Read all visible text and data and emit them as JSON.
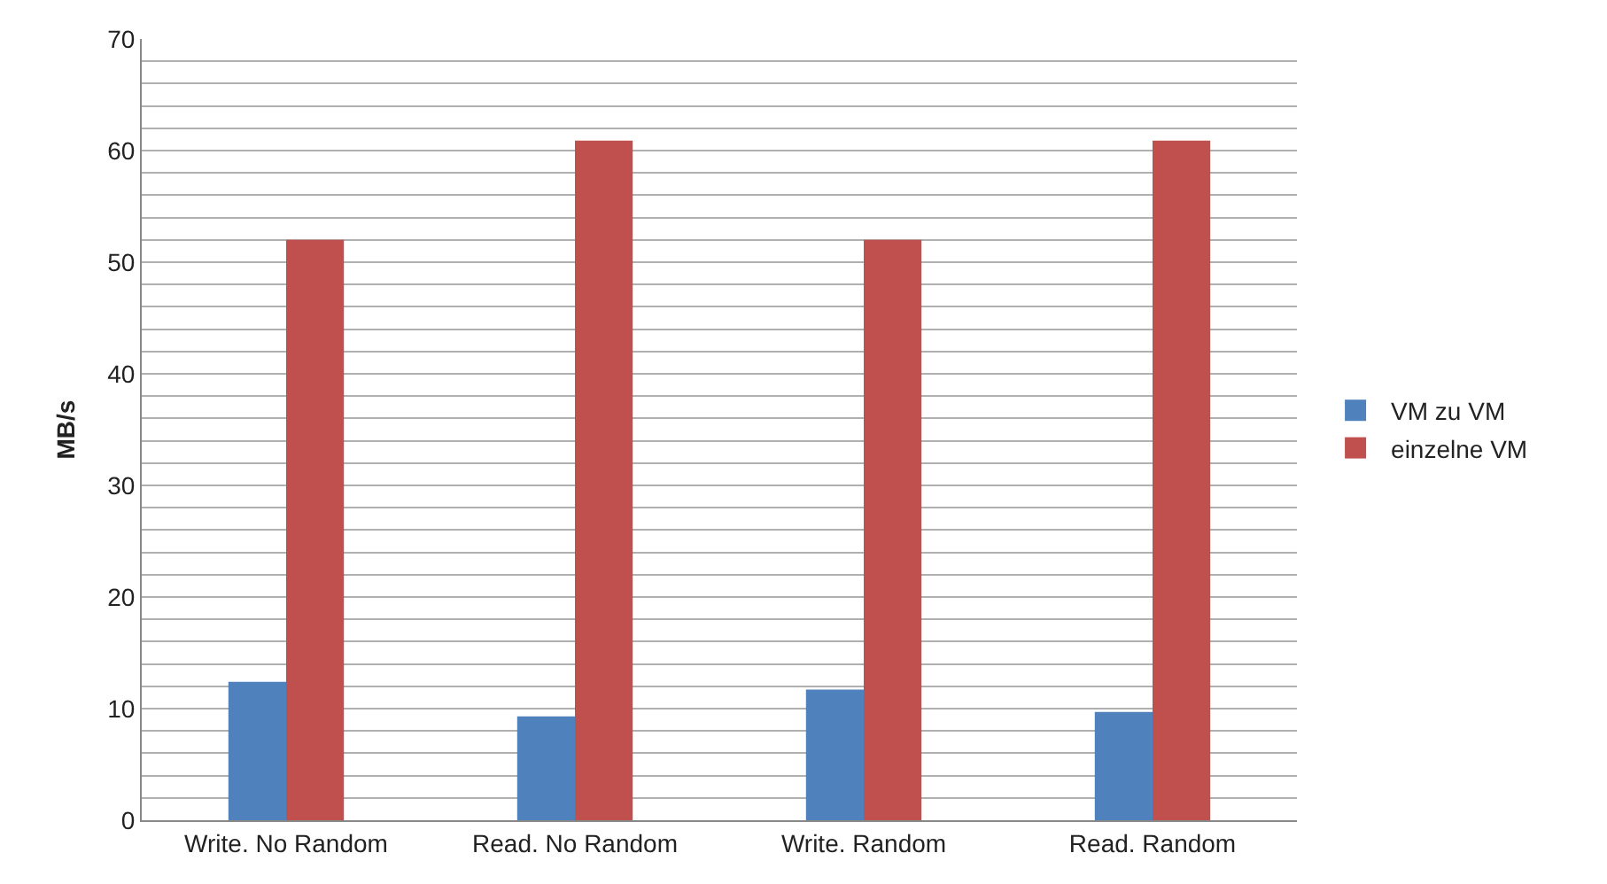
{
  "chart_data": {
    "type": "bar",
    "ylabel": "MB/s",
    "categories": [
      "Write. No Random",
      "Read. No Random",
      "Write. Random",
      "Read. Random"
    ],
    "series": [
      {
        "name": "VM zu VM",
        "color": "#4f81bd",
        "values": [
          12.4,
          9.3,
          11.7,
          9.7
        ]
      },
      {
        "name": "einzelne VM",
        "color": "#c0504d",
        "values": [
          52,
          60.9,
          52,
          60.9
        ]
      }
    ],
    "ylim": [
      0,
      70
    ],
    "yticks": [
      0,
      {
        "value": 2,
        "label": null
      },
      {
        "value": 4,
        "label": null
      },
      {
        "value": 6,
        "label": null
      },
      {
        "value": 8,
        "label": null
      },
      10,
      {
        "value": 12,
        "label": null
      },
      {
        "value": 14,
        "label": null
      },
      {
        "value": 16,
        "label": null
      },
      {
        "value": 18,
        "label": null
      },
      20,
      {
        "value": 22,
        "label": null
      },
      {
        "value": 24,
        "label": null
      },
      {
        "value": 26,
        "label": null
      },
      {
        "value": 28,
        "label": null
      },
      30,
      {
        "value": 32,
        "label": null
      },
      {
        "value": 34,
        "label": null
      },
      {
        "value": 36,
        "label": null
      },
      {
        "value": 38,
        "label": null
      },
      40,
      {
        "value": 42,
        "label": null
      },
      {
        "value": 44,
        "label": null
      },
      {
        "value": 46,
        "label": null
      },
      {
        "value": 48,
        "label": null
      },
      50,
      {
        "value": 52,
        "label": null
      },
      {
        "value": 54,
        "label": null
      },
      {
        "value": 56,
        "label": null
      },
      {
        "value": 58,
        "label": null
      },
      60,
      {
        "value": 62,
        "label": null
      },
      {
        "value": 64,
        "label": null
      },
      {
        "value": 66,
        "label": null
      },
      {
        "value": 68,
        "label": null
      },
      70
    ],
    "grid": "y",
    "legend": "right"
  }
}
